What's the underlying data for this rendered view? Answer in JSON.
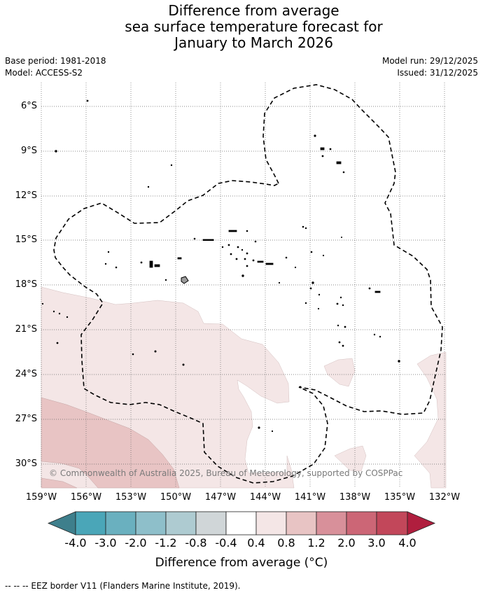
{
  "title": {
    "line1": "Difference from average",
    "line2": "sea surface temperature forecast for",
    "line3": "January to March 2026"
  },
  "meta": {
    "base_period": "Base period: 1981-2018",
    "model": "Model: ACCESS-S2",
    "model_run": "Model run: 29/12/2025",
    "issued": "Issued: 31/12/2025"
  },
  "map": {
    "lat_ticks": [
      "6°S",
      "9°S",
      "12°S",
      "15°S",
      "18°S",
      "21°S",
      "24°S",
      "27°S",
      "30°S"
    ],
    "lon_ticks": [
      "159°W",
      "156°W",
      "153°W",
      "150°W",
      "147°W",
      "144°W",
      "141°W",
      "138°W",
      "135°W",
      "132°W"
    ],
    "copyright": "© Commonwealth of Australia 2025, Bureau of Meteorology, supported by COSPPac",
    "anomaly_bands": [
      {
        "range": "0.4 to 0.8",
        "color": "#f4e6e6"
      },
      {
        "range": "0.8 to 1.2",
        "color": "#e8c4c4"
      }
    ]
  },
  "colorbar": {
    "labels": [
      "-4.0",
      "-3.0",
      "-2.0",
      "-1.2",
      "-0.8",
      "-0.4",
      "0.4",
      "0.8",
      "1.2",
      "2.0",
      "3.0",
      "4.0"
    ],
    "colors": [
      "#3e7f8c",
      "#4aa6b8",
      "#6ab0bf",
      "#8ebfca",
      "#aecbd1",
      "#d0d6d8",
      "#ffffff",
      "#f4e6e6",
      "#e8c4c4",
      "#d8909a",
      "#cc6676",
      "#c2475a",
      "#b01e3e"
    ],
    "title": "Difference from average (°C)"
  },
  "footnote": "--  --  -- EEZ border V11 (Flanders Marine Institute, 2019)."
}
